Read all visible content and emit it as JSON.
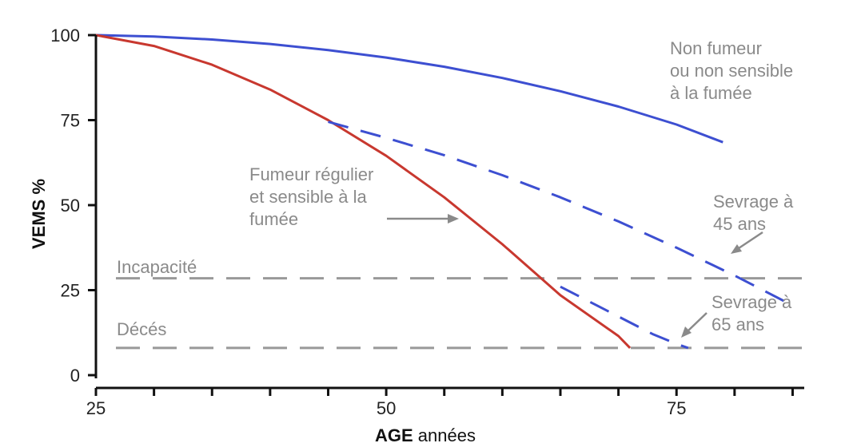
{
  "chart_data": {
    "type": "line",
    "xlabel": {
      "bold": "AGE",
      "rest": " années"
    },
    "ylabel": "VEMS %",
    "xlim": [
      25,
      86
    ],
    "ylim": [
      0,
      100
    ],
    "x_ticks": [
      25,
      50,
      75
    ],
    "x_minor_ticks": [
      30,
      35,
      40,
      45,
      55,
      60,
      65,
      70,
      80,
      85
    ],
    "y_ticks": [
      0,
      25,
      50,
      75,
      100
    ],
    "colors": {
      "non_smoker": "#3d4fd1",
      "smoker": "#c8382f",
      "ref": "#999999",
      "annot": "#8a8a8a"
    },
    "series": [
      {
        "key": "non_smoker",
        "style": "solid",
        "x": [
          25,
          30,
          35,
          40,
          45,
          50,
          55,
          60,
          65,
          70,
          75,
          79
        ],
        "y": [
          100,
          99.6,
          98.7,
          97.4,
          95.6,
          93.4,
          90.7,
          87.4,
          83.5,
          79.0,
          73.7,
          68.5
        ]
      },
      {
        "key": "smoker",
        "style": "solid",
        "x": [
          25,
          30,
          35,
          40,
          45,
          50,
          55,
          60,
          65,
          70,
          71
        ],
        "y": [
          100,
          96.8,
          91.3,
          84.0,
          75.0,
          64.5,
          52.3,
          38.5,
          23.5,
          11.5,
          8.0
        ]
      },
      {
        "key": "sevrage_45",
        "style": "dashed",
        "x": [
          45,
          50,
          55,
          60,
          65,
          70,
          75,
          80,
          85
        ],
        "y": [
          74.5,
          69.8,
          64.7,
          58.8,
          52.3,
          45.2,
          37.5,
          29.3,
          20.5
        ]
      },
      {
        "key": "sevrage_65",
        "style": "dashed",
        "x": [
          65,
          67,
          69,
          71,
          73,
          75,
          76
        ],
        "y": [
          26.0,
          22.5,
          19.0,
          15.5,
          12.0,
          9.2,
          8.0
        ]
      }
    ],
    "reference_lines": [
      {
        "key": "incapacite",
        "label": "Incapacité",
        "y": 28.5
      },
      {
        "key": "deces",
        "label": "Décés",
        "y": 8.0
      }
    ],
    "annotations": {
      "non_smoker": [
        "Non fumeur",
        "ou non sensible",
        "à la fumée"
      ],
      "smoker": [
        "Fumeur régulier",
        "et sensible à la",
        "fumée"
      ],
      "sevrage_45": [
        "Sevrage à",
        "45 ans"
      ],
      "sevrage_65": [
        "Sevrage à",
        "65 ans"
      ]
    }
  }
}
